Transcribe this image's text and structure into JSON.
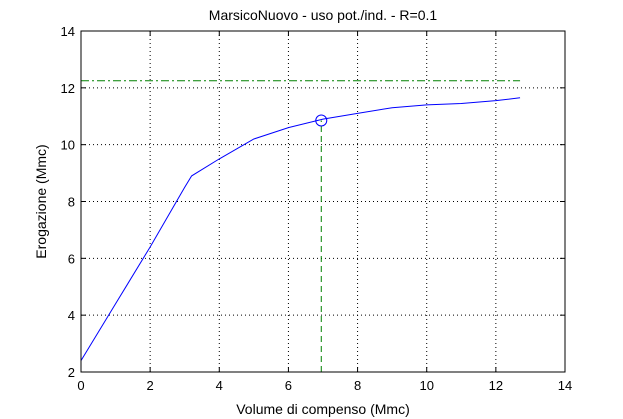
{
  "chart_data": {
    "type": "line",
    "title": "MarsicoNuovo  -  uso pot./ind.  -   R=0.1",
    "xlabel": "Volume di compenso (Mmc)",
    "ylabel": "Erogazione (Mmc)",
    "xlim": [
      0,
      14
    ],
    "ylim": [
      2,
      14
    ],
    "xticks": [
      0,
      2,
      4,
      6,
      8,
      10,
      12,
      14
    ],
    "yticks": [
      2,
      4,
      6,
      8,
      10,
      12,
      14
    ],
    "xtick_labels": [
      "0",
      "2",
      "4",
      "6",
      "8",
      "10",
      "12",
      "14"
    ],
    "ytick_labels": [
      "2",
      "4",
      "6",
      "8",
      "10",
      "12",
      "14"
    ],
    "grid": true,
    "series": [
      {
        "color": "#0000ff",
        "style": "solid",
        "x": [
          0,
          1,
          2,
          3,
          3.2,
          4,
          5,
          6,
          7,
          8,
          9,
          10,
          11,
          12,
          12.7
        ],
        "y": [
          2.4,
          4.4,
          6.4,
          8.5,
          8.9,
          9.5,
          10.2,
          10.6,
          10.9,
          11.1,
          11.3,
          11.4,
          11.45,
          11.55,
          11.65
        ]
      }
    ],
    "reference_lines": [
      {
        "orientation": "horizontal",
        "value": 12.25,
        "from": 0,
        "to": 12.7,
        "color": "#008000",
        "style": "dashdot"
      },
      {
        "orientation": "vertical",
        "value": 6.95,
        "from": 2,
        "to": 10.85,
        "color": "#008000",
        "style": "dashed"
      }
    ],
    "markers": [
      {
        "x": 6.95,
        "y": 10.85,
        "shape": "circle",
        "color": "#0000ff"
      }
    ]
  }
}
